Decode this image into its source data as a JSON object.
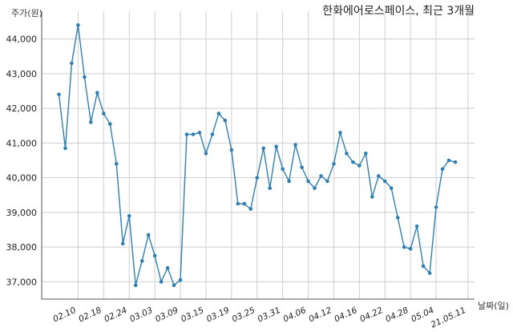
{
  "chart_data": {
    "type": "line",
    "title": "한화에어로스페이스, 최근 3개월",
    "ylabel": "주가(원)",
    "xlabel": "날짜(일)",
    "ylim": [
      36500,
      44800
    ],
    "yticks": [
      37000,
      38000,
      39000,
      40000,
      41000,
      42000,
      43000,
      44000
    ],
    "ytick_labels": [
      "37,000",
      "38,000",
      "39,000",
      "40,000",
      "41,000",
      "42,000",
      "43,000",
      "44,000"
    ],
    "xtick_labels": [
      "02.10",
      "02.18",
      "02.24",
      "03.03",
      "03.09",
      "03.15",
      "03.19",
      "03.25",
      "03.31",
      "04.06",
      "04.12",
      "04.16",
      "04.22",
      "04.28",
      "05.04",
      "21.05.11"
    ],
    "xtick_index": [
      3,
      7,
      11,
      15,
      19,
      23,
      27,
      31,
      35,
      39,
      43,
      47,
      51,
      55,
      59,
      64
    ],
    "grid": true,
    "series": [
      {
        "color": "#2f7fb0",
        "values": [
          42400,
          40850,
          43300,
          44400,
          42900,
          41600,
          42450,
          41850,
          41550,
          40400,
          38100,
          38900,
          36900,
          37600,
          38350,
          37750,
          37000,
          37400,
          36900,
          37050,
          41250,
          41250,
          41300,
          40700,
          41250,
          41850,
          41650,
          40800,
          39250,
          39250,
          39100,
          40000,
          40850,
          39700,
          40900,
          40250,
          39900,
          40950,
          40300,
          39900,
          39700,
          40050,
          39900,
          40400,
          41300,
          40700,
          40450,
          40350,
          40700,
          39450,
          40050,
          39900,
          39700,
          38850,
          38000,
          37950,
          38600,
          37450,
          37250,
          39150,
          40250,
          40500,
          40450
        ]
      }
    ]
  }
}
